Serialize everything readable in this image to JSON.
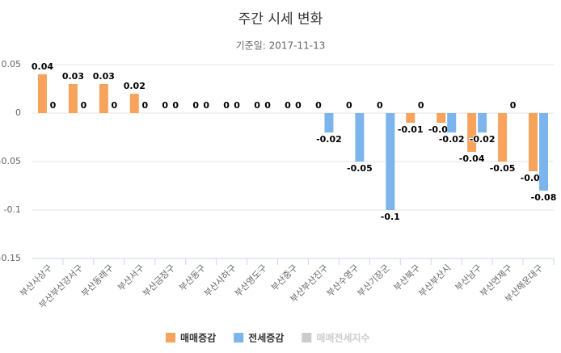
{
  "chart_data": {
    "type": "bar",
    "title": "주간 시세 변화",
    "subtitle": "기준일: 2017-11-13",
    "categories": [
      "부산사상구",
      "부산부산강서구",
      "부산동래구",
      "부산서구",
      "부산금정구",
      "부산동구",
      "부산사하구",
      "부산영도구",
      "부산중구",
      "부산부산진구",
      "부산수영구",
      "부산기장군",
      "부산북구",
      "부산부산시",
      "부산남구",
      "부산연제구",
      "부산해운대구"
    ],
    "series": [
      {
        "name": "매매증감",
        "color": "#f7a35c",
        "values": [
          0.04,
          0.03,
          0.03,
          0.02,
          0,
          0,
          0,
          0,
          0,
          0,
          0,
          0,
          -0.01,
          -0.01,
          -0.04,
          -0.05,
          -0.06
        ]
      },
      {
        "name": "전세증감",
        "color": "#7cb5ec",
        "values": [
          0,
          0,
          0,
          0,
          0,
          0,
          0,
          0,
          0,
          -0.02,
          -0.05,
          -0.1,
          0,
          -0.02,
          -0.02,
          0,
          -0.08
        ]
      },
      {
        "name": "매매전세지수",
        "color": "#cccccc",
        "visible": false
      }
    ],
    "ylim": [
      -0.15,
      0.05
    ],
    "yticks": [
      0.05,
      0,
      -0.05,
      -0.1,
      -0.15
    ],
    "grid": true
  }
}
